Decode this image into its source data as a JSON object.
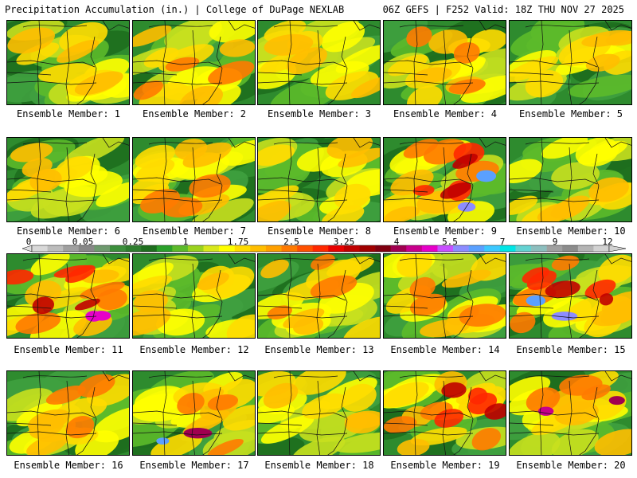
{
  "header": {
    "left": "Precipitation Accumulation (in.) | College of DuPage NEXLAB",
    "right": "06Z GEFS | F252 Valid: 18Z THU NOV 27 2025"
  },
  "colorbar": {
    "tick_labels": [
      "0",
      "0.05",
      "0.25",
      "1",
      "1.75",
      "2.5",
      "3.25",
      "4",
      "5.5",
      "7",
      "9",
      "12"
    ],
    "colors": [
      "#d8d8d8",
      "#bcbcbc",
      "#a0a0a0",
      "#888888",
      "#6e9a6e",
      "#3c8f3c",
      "#2e7d2e",
      "#1e6e1e",
      "#2aa02a",
      "#5cba2a",
      "#9ad21e",
      "#d8e81c",
      "#ffff00",
      "#ffdc00",
      "#ffbe00",
      "#ffa000",
      "#ff7a00",
      "#ff5000",
      "#ff2800",
      "#e80000",
      "#c00000",
      "#a00000",
      "#800010",
      "#a00050",
      "#c8008c",
      "#e600c8",
      "#c850ff",
      "#8c8cff",
      "#5aa0ff",
      "#3cc8ff",
      "#00e6e6",
      "#64d2d2",
      "#8cbebe",
      "#a0a0a0",
      "#8c8c8c",
      "#b4b4b4",
      "#d2d2d2"
    ]
  },
  "palette": {
    "greens": [
      "#1e6e1e",
      "#2e8b2e",
      "#3fa03f",
      "#5cba2a"
    ],
    "yellows": [
      "#c8e01e",
      "#ffff00",
      "#ffdc00"
    ],
    "oranges": [
      "#ffbe00",
      "#ffa000",
      "#ff7a00",
      "#ff5000"
    ],
    "reds": [
      "#ff2800",
      "#e80000",
      "#c00000"
    ],
    "extreme": [
      "#a00050",
      "#c8008c",
      "#e600c8",
      "#8c8cff",
      "#5aa0ff"
    ],
    "gray": "#909090"
  },
  "members": [
    {
      "label": "Ensemble Member: 1"
    },
    {
      "label": "Ensemble Member: 2"
    },
    {
      "label": "Ensemble Member: 3"
    },
    {
      "label": "Ensemble Member: 4"
    },
    {
      "label": "Ensemble Member: 5"
    },
    {
      "label": "Ensemble Member: 6"
    },
    {
      "label": "Ensemble Member: 7"
    },
    {
      "label": "Ensemble Member: 8"
    },
    {
      "label": "Ensemble Member: 9"
    },
    {
      "label": "Ensemble Member: 10"
    },
    {
      "label": "Ensemble Member: 11"
    },
    {
      "label": "Ensemble Member: 12"
    },
    {
      "label": "Ensemble Member: 13"
    },
    {
      "label": "Ensemble Member: 14"
    },
    {
      "label": "Ensemble Member: 15"
    },
    {
      "label": "Ensemble Member: 16"
    },
    {
      "label": "Ensemble Member: 17"
    },
    {
      "label": "Ensemble Member: 18"
    },
    {
      "label": "Ensemble Member: 19"
    },
    {
      "label": "Ensemble Member: 20"
    }
  ]
}
